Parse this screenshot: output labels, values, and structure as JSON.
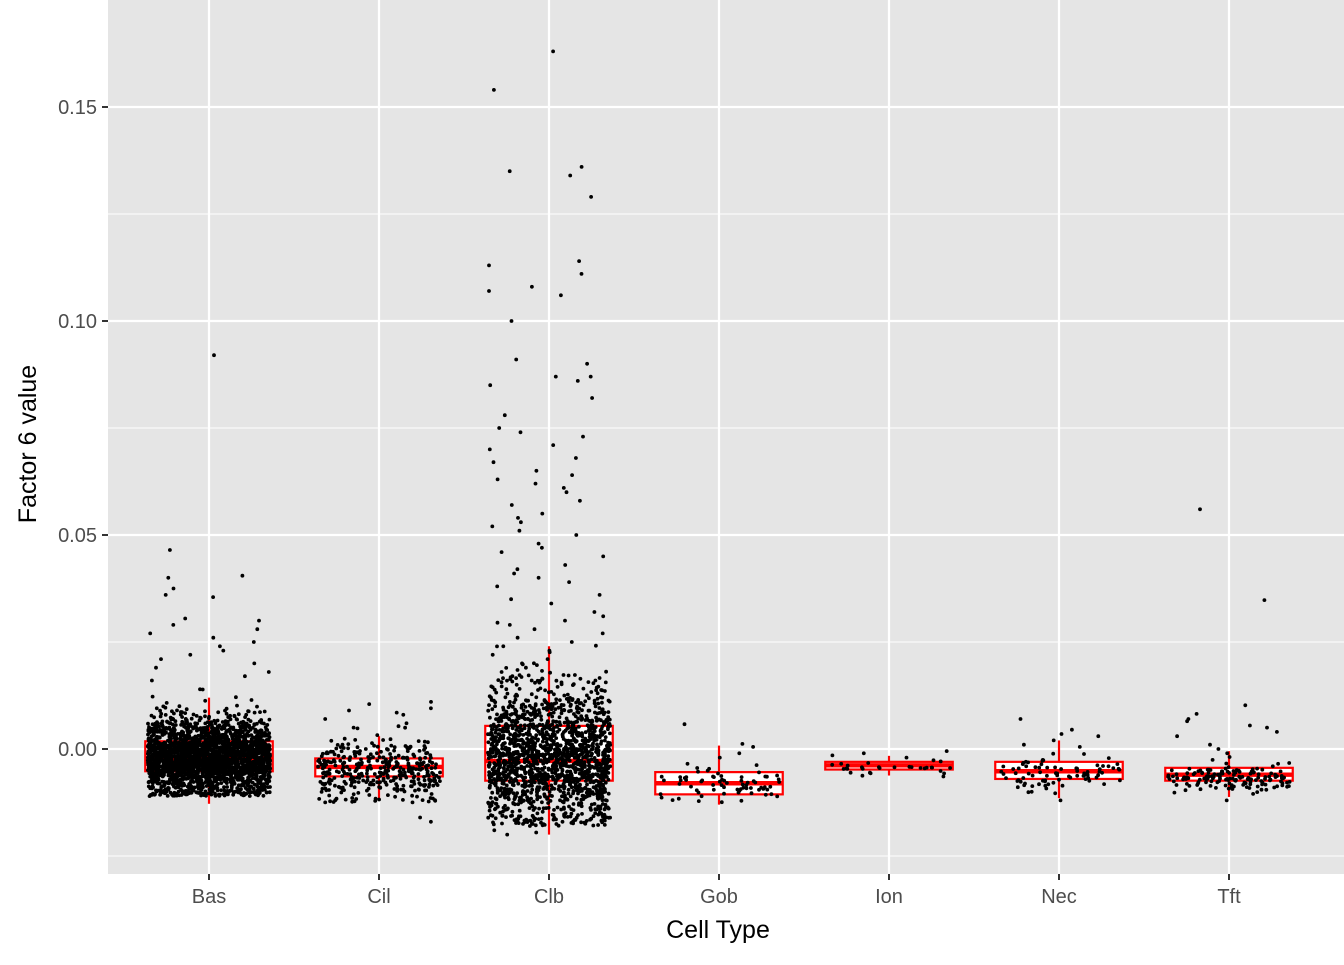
{
  "chart_data": {
    "type": "box",
    "overlay": "jittered-points",
    "xlabel": "Cell Type",
    "ylabel": "Factor 6 value",
    "categories": [
      "Bas",
      "Cil",
      "Clb",
      "Gob",
      "Ion",
      "Nec",
      "Tft"
    ],
    "ylim": [
      -0.029,
      0.17
    ],
    "yticks": [
      0.0,
      0.05,
      0.1,
      0.15
    ],
    "ytick_labels": [
      "0.00",
      "0.05",
      "0.10",
      "0.15"
    ],
    "grid": true,
    "box_color": "#ff0000",
    "point_color": "#000000",
    "panel_background": "#e5e5e5",
    "grid_color": "#ffffff",
    "boxes": [
      {
        "category": "Bas",
        "q1": -0.0052,
        "median": -0.0022,
        "q3": 0.0018,
        "whisker_low": -0.0128,
        "whisker_high": 0.012
      },
      {
        "category": "Cil",
        "q1": -0.0064,
        "median": -0.0042,
        "q3": -0.0022,
        "whisker_low": -0.012,
        "whisker_high": 0.003
      },
      {
        "category": "Clb",
        "q1": -0.0074,
        "median": -0.0028,
        "q3": 0.0054,
        "whisker_low": -0.02,
        "whisker_high": 0.024
      },
      {
        "category": "Gob",
        "q1": -0.0106,
        "median": -0.008,
        "q3": -0.0054,
        "whisker_low": -0.013,
        "whisker_high": 0.0008
      },
      {
        "category": "Ion",
        "q1": -0.0048,
        "median": -0.0038,
        "q3": -0.003,
        "whisker_low": -0.0062,
        "whisker_high": -0.0016
      },
      {
        "category": "Nec",
        "q1": -0.007,
        "median": -0.0052,
        "q3": -0.003,
        "whisker_low": -0.0115,
        "whisker_high": 0.002
      },
      {
        "category": "Tft",
        "q1": -0.0074,
        "median": -0.006,
        "q3": -0.0044,
        "whisker_low": -0.0112,
        "whisker_high": -0.0005
      }
    ],
    "points": [
      {
        "category": "Bas",
        "n": 2600,
        "core_low": -0.011,
        "core_high": 0.007,
        "spread": 0.36,
        "high_values": [
          0.092,
          0.0465,
          0.0405,
          0.04,
          0.0375,
          0.036,
          0.0355,
          0.0305,
          0.03,
          0.029,
          0.028,
          0.027,
          0.026,
          0.025,
          0.024,
          0.023,
          0.022,
          0.021,
          0.02,
          0.019,
          0.018,
          0.017,
          0.016
        ]
      },
      {
        "category": "Cil",
        "n": 380,
        "core_low": -0.0125,
        "core_high": 0.002,
        "spread": 0.36,
        "high_values": [
          0.011,
          0.0105,
          0.0095,
          0.009,
          0.0085,
          0.008,
          0.007,
          0.006,
          0.005,
          -0.016,
          -0.017
        ]
      },
      {
        "category": "Clb",
        "n": 1700,
        "core_low": -0.018,
        "core_high": 0.015,
        "spread": 0.36,
        "high_values": [
          0.163,
          0.154,
          0.136,
          0.135,
          0.134,
          0.129,
          0.114,
          0.113,
          0.111,
          0.108,
          0.107,
          0.106,
          0.1,
          0.091,
          0.09,
          0.087,
          0.087,
          0.086,
          0.085,
          0.082,
          0.078,
          0.075,
          0.074,
          0.073,
          0.071,
          0.07,
          0.068,
          0.067,
          0.065,
          0.064,
          0.063,
          0.062,
          0.061,
          0.06,
          0.058,
          0.057,
          0.055,
          0.054,
          0.053,
          0.052,
          0.051,
          0.05,
          0.048,
          0.047,
          0.046,
          0.045,
          0.043,
          0.042,
          0.041,
          0.04,
          0.039,
          0.038,
          0.036,
          0.035,
          0.034,
          0.032,
          0.031,
          0.03,
          0.029,
          0.028,
          0.027,
          0.026,
          0.025,
          0.024,
          0.023,
          0.022,
          0.021,
          0.02,
          0.019,
          0.018,
          0.017,
          0.016,
          -0.019,
          -0.0195,
          -0.02
        ]
      },
      {
        "category": "Gob",
        "n": 70,
        "core_low": -0.0125,
        "core_high": -0.004,
        "spread": 0.36,
        "high_values": [
          0.0058,
          0.0012,
          0.0005,
          -0.001,
          -0.002
        ]
      },
      {
        "category": "Ion",
        "n": 30,
        "core_low": -0.0065,
        "core_high": -0.0025,
        "spread": 0.36,
        "high_values": [
          -0.0005,
          -0.001,
          -0.0015,
          -0.002
        ]
      },
      {
        "category": "Nec",
        "n": 80,
        "core_low": -0.0105,
        "core_high": -0.002,
        "spread": 0.36,
        "high_values": [
          0.007,
          0.0045,
          0.0035,
          0.003,
          0.002,
          0.001,
          0.0005,
          -0.012
        ]
      },
      {
        "category": "Tft",
        "n": 150,
        "core_low": -0.0105,
        "core_high": -0.003,
        "spread": 0.36,
        "high_values": [
          0.056,
          0.0348,
          0.0102,
          0.0082,
          0.007,
          0.0065,
          0.0055,
          0.005,
          0.004,
          0.003,
          0.001,
          0.0,
          -0.001,
          -0.012
        ]
      }
    ]
  }
}
